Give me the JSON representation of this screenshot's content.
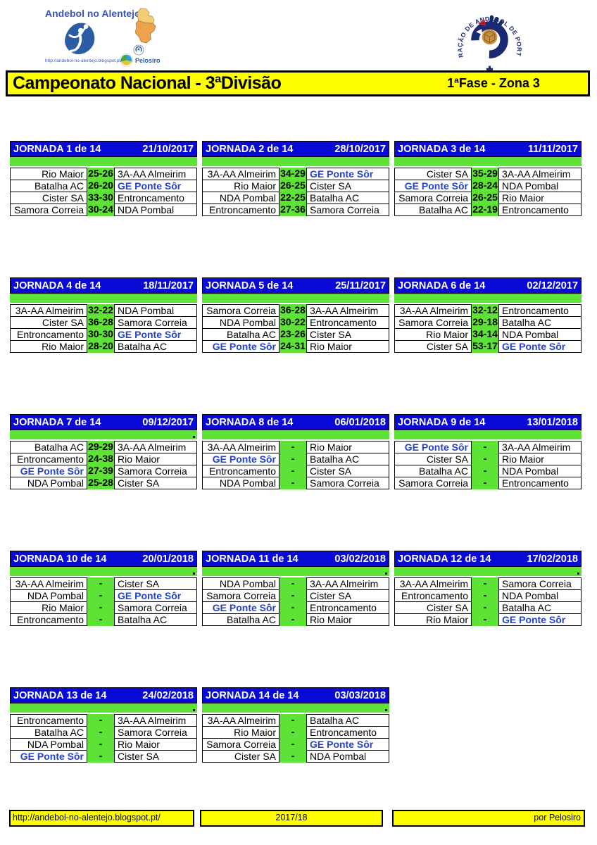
{
  "title_bar": {
    "title": "Campeonato Nacional - 3ªDivisão",
    "phase": "1ªFase - Zona 3"
  },
  "branding": {
    "site_name": "Andebol no Alentejo",
    "site_url": "http://andebol-no-alentejo.blogspot.pt/",
    "pelosiro": "Pelosiro",
    "federation": "FEDERAÇÃO DE ANDEBOL DE PORTUGAL"
  },
  "footer": {
    "url": "http://andebol-no-alentejo.blogspot.pt/",
    "season": "2017/18",
    "credit": "por Pelosiro"
  },
  "highlight_team": "GE Ponte Sôr",
  "colors": {
    "header_blue": "#0a0ad6",
    "lime_green": "#5de335",
    "yellow": "#ffff00",
    "team_blue": "#2442ce"
  },
  "jornadas": [
    {
      "label": "JORNADA 1 de 14",
      "date": "21/10/2017",
      "dot": false,
      "matches": [
        {
          "home": "Rio Maior",
          "score": "25-26",
          "away": "3A-AA Almeirim"
        },
        {
          "home": "Batalha AC",
          "score": "26-20",
          "away": "GE Ponte Sôr"
        },
        {
          "home": "Cister SA",
          "score": "33-30",
          "away": "Entroncamento"
        },
        {
          "home": "Samora Correia",
          "score": "30-24",
          "away": "NDA Pombal"
        }
      ]
    },
    {
      "label": "JORNADA 2 de 14",
      "date": "28/10/2017",
      "dot": false,
      "matches": [
        {
          "home": "3A-AA Almeirim",
          "score": "34-29",
          "away": "GE Ponte Sôr"
        },
        {
          "home": "Rio Maior",
          "score": "26-25",
          "away": "Cister SA"
        },
        {
          "home": "NDA Pombal",
          "score": "22-25",
          "away": "Batalha AC"
        },
        {
          "home": "Entroncamento",
          "score": "27-36",
          "away": "Samora Correia"
        }
      ]
    },
    {
      "label": "JORNADA 3 de 14",
      "date": "11/11/2017",
      "dot": false,
      "matches": [
        {
          "home": "Cister SA",
          "score": "35-29",
          "away": "3A-AA Almeirim"
        },
        {
          "home": "GE Ponte Sôr",
          "score": "28-24",
          "away": "NDA Pombal"
        },
        {
          "home": "Samora Correia",
          "score": "26-25",
          "away": "Rio Maior"
        },
        {
          "home": "Batalha AC",
          "score": "22-19",
          "away": "Entroncamento"
        }
      ]
    },
    {
      "label": "JORNADA 4 de 14",
      "date": "18/11/2017",
      "dot": false,
      "matches": [
        {
          "home": "3A-AA Almeirim",
          "score": "32-22",
          "away": "NDA Pombal"
        },
        {
          "home": "Cister SA",
          "score": "36-28",
          "away": "Samora Correia"
        },
        {
          "home": "Entroncamento",
          "score": "30-30",
          "away": "GE Ponte Sôr"
        },
        {
          "home": "Rio Maior",
          "score": "28-20",
          "away": "Batalha AC"
        }
      ]
    },
    {
      "label": "JORNADA 5 de 14",
      "date": "25/11/2017",
      "dot": false,
      "matches": [
        {
          "home": "Samora Correia",
          "score": "36-28",
          "away": "3A-AA Almeirim"
        },
        {
          "home": "NDA Pombal",
          "score": "30-22",
          "away": "Entroncamento"
        },
        {
          "home": "Batalha AC",
          "score": "23-26",
          "away": "Cister SA"
        },
        {
          "home": "GE Ponte Sôr",
          "score": "24-31",
          "away": "Rio Maior"
        }
      ]
    },
    {
      "label": "JORNADA 6 de 14",
      "date": "02/12/2017",
      "dot": false,
      "matches": [
        {
          "home": "3A-AA Almeirim",
          "score": "32-12",
          "away": "Entroncamento"
        },
        {
          "home": "Samora Correia",
          "score": "29-18",
          "away": "Batalha AC"
        },
        {
          "home": "Rio Maior",
          "score": "34-14",
          "away": "NDA Pombal"
        },
        {
          "home": "Cister SA",
          "score": "53-17",
          "away": "GE Ponte Sôr"
        }
      ]
    },
    {
      "label": "JORNADA 7 de 14",
      "date": "09/12/2017",
      "dot": true,
      "matches": [
        {
          "home": "Batalha AC",
          "score": "29-29",
          "away": "3A-AA Almeirim"
        },
        {
          "home": "Entroncamento",
          "score": "24-38",
          "away": "Rio Maior"
        },
        {
          "home": "GE Ponte Sôr",
          "score": "27-39",
          "away": "Samora Correia"
        },
        {
          "home": "NDA Pombal",
          "score": "25-28",
          "away": "Cister SA"
        }
      ]
    },
    {
      "label": "JORNADA 8 de 14",
      "date": "06/01/2018",
      "dot": false,
      "matches": [
        {
          "home": "3A-AA Almeirim",
          "score": "-",
          "away": "Rio Maior"
        },
        {
          "home": "GE Ponte Sôr",
          "score": "-",
          "away": "Batalha AC"
        },
        {
          "home": "Entroncamento",
          "score": "-",
          "away": "Cister SA"
        },
        {
          "home": "NDA Pombal",
          "score": "-",
          "away": "Samora Correia"
        }
      ]
    },
    {
      "label": "JORNADA 9 de 14",
      "date": "13/01/2018",
      "dot": false,
      "matches": [
        {
          "home": "GE Ponte Sôr",
          "score": "-",
          "away": "3A-AA Almeirim"
        },
        {
          "home": "Cister SA",
          "score": "-",
          "away": "Rio Maior"
        },
        {
          "home": "Batalha AC",
          "score": "-",
          "away": "NDA Pombal"
        },
        {
          "home": "Samora Correia",
          "score": "-",
          "away": "Entroncamento"
        }
      ]
    },
    {
      "label": "JORNADA 10 de 14",
      "date": "20/01/2018",
      "dot": true,
      "matches": [
        {
          "home": "3A-AA Almeirim",
          "score": "-",
          "away": "Cister SA"
        },
        {
          "home": "NDA Pombal",
          "score": "-",
          "away": "GE Ponte Sôr"
        },
        {
          "home": "Rio Maior",
          "score": "-",
          "away": "Samora Correia"
        },
        {
          "home": "Entroncamento",
          "score": "-",
          "away": "Batalha AC"
        }
      ]
    },
    {
      "label": "JORNADA 11 de 14",
      "date": "03/02/2018",
      "dot": true,
      "matches": [
        {
          "home": "NDA Pombal",
          "score": "-",
          "away": "3A-AA Almeirim"
        },
        {
          "home": "Samora Correia",
          "score": "-",
          "away": "Cister SA"
        },
        {
          "home": "GE Ponte Sôr",
          "score": "-",
          "away": "Entroncamento"
        },
        {
          "home": "Batalha AC",
          "score": "-",
          "away": "Rio Maior"
        }
      ]
    },
    {
      "label": "JORNADA 12 de 14",
      "date": "17/02/2018",
      "dot": true,
      "matches": [
        {
          "home": "3A-AA Almeirim",
          "score": "-",
          "away": "Samora Correia"
        },
        {
          "home": "Entroncamento",
          "score": "-",
          "away": "NDA Pombal"
        },
        {
          "home": "Cister SA",
          "score": "-",
          "away": "Batalha AC"
        },
        {
          "home": "Rio Maior",
          "score": "-",
          "away": "GE Ponte Sôr"
        }
      ]
    },
    {
      "label": "JORNADA 13 de 14",
      "date": "24/02/2018",
      "dot": true,
      "matches": [
        {
          "home": "Entroncamento",
          "score": "-",
          "away": "3A-AA Almeirim"
        },
        {
          "home": "Batalha AC",
          "score": "-",
          "away": "Samora Correia"
        },
        {
          "home": "NDA Pombal",
          "score": "-",
          "away": "Rio Maior"
        },
        {
          "home": "GE Ponte Sôr",
          "score": "-",
          "away": "Cister SA"
        }
      ]
    },
    {
      "label": "JORNADA 14 de 14",
      "date": "03/03/2018",
      "dot": true,
      "matches": [
        {
          "home": "3A-AA Almeirim",
          "score": "-",
          "away": "Batalha AC"
        },
        {
          "home": "Rio Maior",
          "score": "-",
          "away": "Entroncamento"
        },
        {
          "home": "Samora Correia",
          "score": "-",
          "away": "GE Ponte Sôr"
        },
        {
          "home": "Cister SA",
          "score": "-",
          "away": "NDA Pombal"
        }
      ]
    }
  ]
}
